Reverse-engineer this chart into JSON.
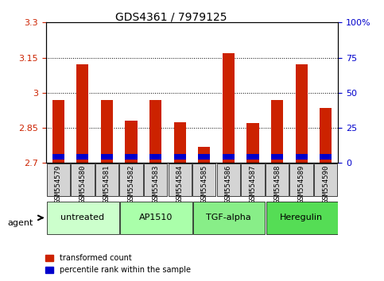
{
  "title": "GDS4361 / 7979125",
  "categories": [
    "GSM554579",
    "GSM554580",
    "GSM554581",
    "GSM554582",
    "GSM554583",
    "GSM554584",
    "GSM554585",
    "GSM554586",
    "GSM554587",
    "GSM554588",
    "GSM554589",
    "GSM554590"
  ],
  "red_values": [
    2.97,
    3.12,
    2.97,
    2.88,
    2.97,
    2.875,
    2.77,
    3.17,
    2.87,
    2.97,
    3.12,
    2.935
  ],
  "blue_values": [
    0.025,
    0.025,
    0.022,
    0.022,
    0.025,
    0.022,
    0.022,
    0.022,
    0.022,
    0.022,
    0.022,
    0.022
  ],
  "ymin": 2.7,
  "ymax": 3.3,
  "y2min": 0,
  "y2max": 100,
  "yticks": [
    2.7,
    2.85,
    3.0,
    3.15,
    3.3
  ],
  "y2ticks": [
    0,
    25,
    50,
    75,
    100
  ],
  "ytick_labels": [
    "2.7",
    "2.85",
    "3",
    "3.15",
    "3.3"
  ],
  "y2tick_labels": [
    "0",
    "25",
    "50",
    "75",
    "100%"
  ],
  "grid_lines": [
    2.85,
    3.0,
    3.15
  ],
  "agent_groups": [
    {
      "label": "untreated",
      "start": 0,
      "end": 3,
      "color": "#ccffcc"
    },
    {
      "label": "AP1510",
      "start": 3,
      "end": 6,
      "color": "#aaffaa"
    },
    {
      "label": "TGF-alpha",
      "start": 6,
      "end": 9,
      "color": "#88ee88"
    },
    {
      "label": "Heregulin",
      "start": 9,
      "end": 12,
      "color": "#55dd55"
    }
  ],
  "bar_color_red": "#cc2200",
  "bar_color_blue": "#0000cc",
  "bar_width": 0.5,
  "xlabel_area_color": "#cccccc",
  "background_color": "#ffffff",
  "legend_red_label": "transformed count",
  "legend_blue_label": "percentile rank within the sample",
  "agent_label": "agent"
}
